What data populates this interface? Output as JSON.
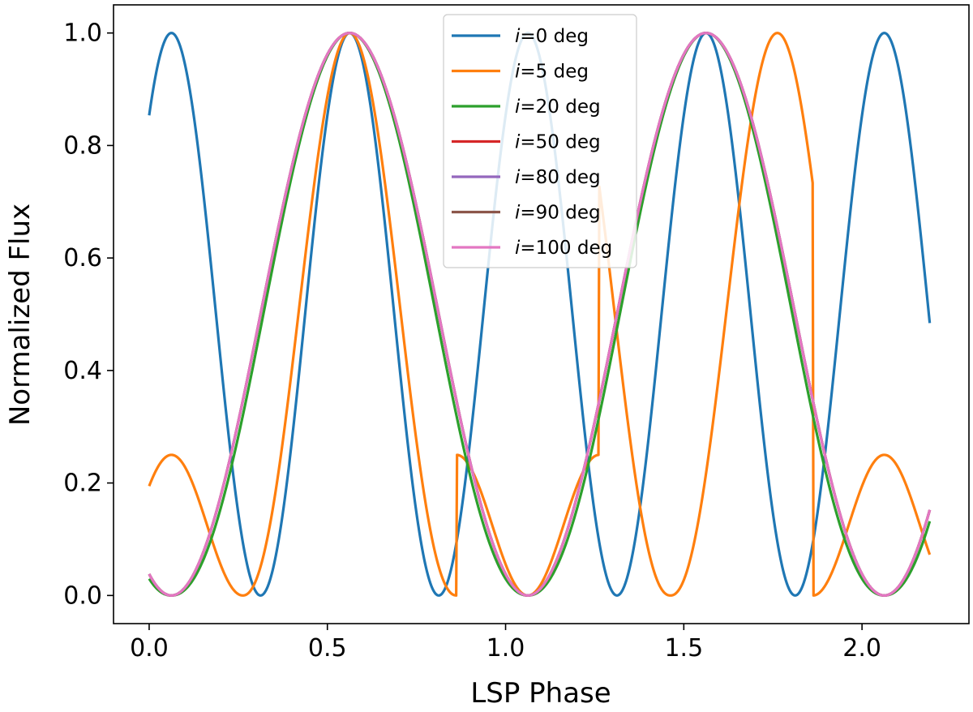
{
  "chart_data": {
    "type": "line",
    "xlabel": "LSP Phase",
    "ylabel": "Normalized Flux",
    "xlim": [
      -0.1,
      2.3
    ],
    "ylim": [
      -0.05,
      1.05
    ],
    "x_range": [
      0.0,
      2.19
    ],
    "xticks": [
      0.0,
      0.5,
      1.0,
      1.5,
      2.0
    ],
    "xtick_labels": [
      "0.0",
      "0.5",
      "1.0",
      "1.5",
      "2.0"
    ],
    "yticks": [
      0.0,
      0.2,
      0.4,
      0.6,
      0.8,
      1.0
    ],
    "ytick_labels": [
      "0.0",
      "0.2",
      "0.4",
      "0.6",
      "0.8",
      "1.0"
    ],
    "grid": false,
    "legend_position": "top-center",
    "series": [
      {
        "name_prefix": "i",
        "name_suffix": "=0 deg",
        "color": "#1f77b4",
        "model": "sin2",
        "amplitude": 1.0,
        "period": 0.5,
        "peak_phase": 0.0625
      },
      {
        "name_prefix": "i",
        "name_suffix": "=5 deg",
        "color": "#ff7f0e",
        "model": "double",
        "primary_amplitude": 1.0,
        "secondary_amplitude": 0.25,
        "primary_peak": 0.5625,
        "secondary_peak": 0.0625,
        "minima": [
          0.2625,
          0.8625
        ]
      },
      {
        "name_prefix": "i",
        "name_suffix": "=20 deg",
        "color": "#2ca02c",
        "model": "sin2",
        "amplitude": 1.0,
        "period": 1.0,
        "peak_phase": 0.5625,
        "width_factor": 0.93
      },
      {
        "name_prefix": "i",
        "name_suffix": "=50 deg",
        "color": "#d62728",
        "model": "sin2",
        "amplitude": 1.0,
        "period": 1.0,
        "peak_phase": 0.5625
      },
      {
        "name_prefix": "i",
        "name_suffix": "=80 deg",
        "color": "#9467bd",
        "model": "sin2",
        "amplitude": 1.0,
        "period": 1.0,
        "peak_phase": 0.5625
      },
      {
        "name_prefix": "i",
        "name_suffix": "=90 deg",
        "color": "#8c564b",
        "model": "sin2",
        "amplitude": 1.0,
        "period": 1.0,
        "peak_phase": 0.5625
      },
      {
        "name_prefix": "i",
        "name_suffix": "=100 deg",
        "color": "#e377c2",
        "model": "sin2",
        "amplitude": 1.0,
        "period": 1.0,
        "peak_phase": 0.5625
      }
    ]
  }
}
